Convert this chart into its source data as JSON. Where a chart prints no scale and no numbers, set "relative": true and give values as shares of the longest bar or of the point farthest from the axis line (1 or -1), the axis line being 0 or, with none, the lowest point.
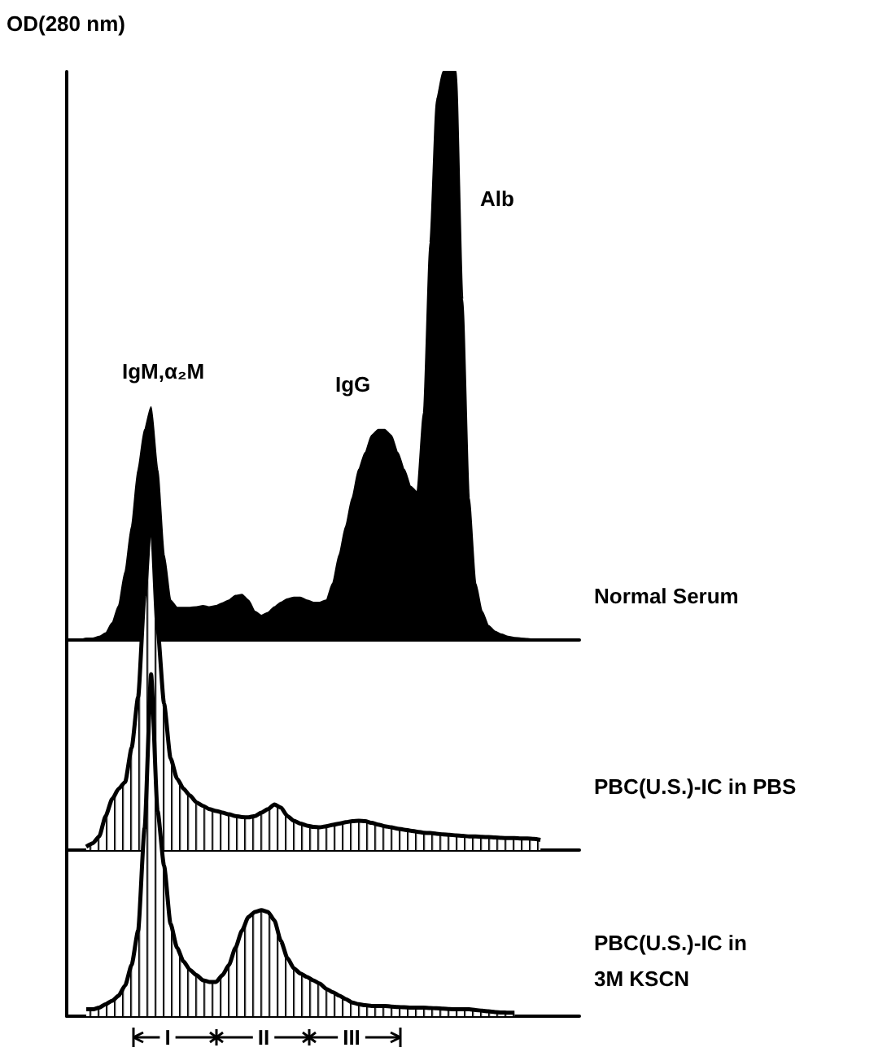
{
  "chart_data": [
    {
      "type": "area",
      "relative": true,
      "ylabel": "OD(280 nm)",
      "tick_labels": false,
      "annotations": [
        "IgM,α₂M",
        "IgG",
        "Alb"
      ],
      "categories": [
        null,
        null,
        null,
        null,
        null,
        null,
        null,
        null,
        null,
        null,
        null,
        null,
        null,
        null,
        null,
        null,
        null,
        null,
        null,
        null,
        null,
        null,
        null,
        null,
        null,
        null,
        null,
        null,
        null,
        null,
        null,
        null,
        null,
        null,
        null,
        null,
        null,
        null,
        null,
        null,
        null,
        null,
        null,
        null,
        null,
        null,
        null,
        null,
        null,
        null,
        null,
        null,
        null,
        null,
        null,
        null,
        null,
        null,
        null,
        null,
        null,
        null,
        null,
        null,
        null,
        null,
        null,
        null,
        null,
        null,
        null,
        null,
        null,
        null,
        null,
        null,
        null,
        null,
        null,
        null
      ],
      "series": [
        {
          "name": "Normal Serum",
          "color": "#000000",
          "values": [
            0,
            0,
            0,
            0.003,
            0.003,
            0.006,
            0.012,
            0.03,
            0.06,
            0.12,
            0.2,
            0.3,
            0.37,
            0.41,
            0.3,
            0.15,
            0.07,
            0.057,
            0.057,
            0.057,
            0.058,
            0.06,
            0.058,
            0.06,
            0.065,
            0.07,
            0.078,
            0.08,
            0.07,
            0.05,
            0.043,
            0.048,
            0.058,
            0.066,
            0.072,
            0.075,
            0.075,
            0.07,
            0.066,
            0.066,
            0.07,
            0.1,
            0.15,
            0.2,
            0.25,
            0.3,
            0.33,
            0.36,
            0.37,
            0.37,
            0.36,
            0.33,
            0.3,
            0.27,
            0.26,
            0.4,
            0.7,
            0.95,
            1,
            1,
            1,
            0.6,
            0.25,
            0.1,
            0.05,
            0.025,
            0.015,
            0.01,
            0.006,
            0.004,
            0.003,
            0.002,
            0.001,
            0,
            0,
            0,
            0,
            0,
            0,
            0
          ]
        }
      ]
    },
    {
      "type": "area",
      "relative": true,
      "tick_labels": false,
      "categories": [
        null,
        null,
        null,
        null,
        null,
        null,
        null,
        null,
        null,
        null,
        null,
        null,
        null,
        null,
        null,
        null,
        null,
        null,
        null,
        null,
        null,
        null,
        null,
        null,
        null,
        null,
        null,
        null,
        null,
        null,
        null,
        null,
        null,
        null,
        null,
        null,
        null,
        null,
        null,
        null,
        null,
        null,
        null,
        null,
        null,
        null,
        null,
        null,
        null,
        null,
        null,
        null,
        null,
        null,
        null,
        null,
        null,
        null,
        null,
        null,
        null,
        null,
        null,
        null,
        null,
        null,
        null,
        null,
        null,
        null,
        null,
        null,
        null,
        null,
        null,
        null,
        null,
        null,
        null,
        null
      ],
      "series": [
        {
          "name": "PBC(U.S.)-IC in PBS",
          "color": "#000000",
          "values": [
            null,
            null,
            null,
            0.01,
            0.02,
            0.04,
            0.1,
            0.15,
            0.18,
            0.2,
            0.3,
            0.45,
            0.75,
            1,
            0.65,
            0.43,
            0.27,
            0.21,
            0.18,
            0.16,
            0.14,
            0.13,
            0.12,
            0.115,
            0.11,
            0.105,
            0.1,
            0.097,
            0.096,
            0.1,
            0.11,
            0.12,
            0.134,
            0.125,
            0.1,
            0.086,
            0.078,
            0.072,
            0.068,
            0.067,
            0.07,
            0.074,
            0.078,
            0.082,
            0.085,
            0.086,
            0.085,
            0.08,
            0.075,
            0.07,
            0.067,
            0.063,
            0.06,
            0.057,
            0.054,
            0.051,
            0.05,
            0.048,
            0.046,
            0.045,
            0.043,
            0.042,
            0.04,
            0.04,
            0.039,
            0.038,
            0.037,
            0.036,
            0.035,
            0.035,
            0.034,
            0.034,
            0.033,
            0.03,
            null,
            null,
            null,
            null,
            null,
            null
          ]
        }
      ]
    },
    {
      "type": "area",
      "relative": true,
      "tick_labels": false,
      "annotations": [
        "I",
        "II",
        "III"
      ],
      "categories": [
        null,
        null,
        null,
        null,
        null,
        null,
        null,
        null,
        null,
        null,
        null,
        null,
        null,
        null,
        null,
        null,
        null,
        null,
        null,
        null,
        null,
        null,
        null,
        null,
        null,
        null,
        null,
        null,
        null,
        null,
        null,
        null,
        null,
        null,
        null,
        null,
        null,
        null,
        null,
        null,
        null,
        null,
        null,
        null,
        null,
        null,
        null,
        null,
        null,
        null,
        null,
        null,
        null,
        null,
        null,
        null,
        null,
        null,
        null,
        null,
        null,
        null,
        null,
        null,
        null,
        null,
        null,
        null,
        null,
        null,
        null,
        null,
        null,
        null,
        null,
        null,
        null,
        null,
        null,
        null
      ],
      "series": [
        {
          "name": "PBC(U.S.)-IC in 3M KSCN",
          "color": "#000000",
          "values": [
            null,
            null,
            null,
            0.02,
            0.02,
            0.025,
            0.035,
            0.045,
            0.06,
            0.09,
            0.15,
            0.25,
            0.55,
            1,
            0.6,
            0.44,
            0.27,
            0.2,
            0.16,
            0.135,
            0.12,
            0.105,
            0.1,
            0.1,
            0.12,
            0.15,
            0.2,
            0.25,
            0.29,
            0.305,
            0.31,
            0.305,
            0.28,
            0.22,
            0.17,
            0.14,
            0.125,
            0.115,
            0.105,
            0.095,
            0.08,
            0.07,
            0.06,
            0.05,
            0.04,
            0.035,
            0.032,
            0.03,
            0.03,
            0.03,
            0.028,
            0.027,
            0.026,
            0.025,
            0.025,
            0.025,
            0.024,
            0.023,
            0.022,
            0.021,
            0.02,
            0.02,
            0.02,
            0.018,
            0.016,
            0.014,
            0.012,
            0.011,
            0.01,
            0.01,
            null,
            null,
            null,
            null,
            null,
            null,
            null,
            null,
            null,
            null
          ]
        }
      ]
    }
  ]
}
